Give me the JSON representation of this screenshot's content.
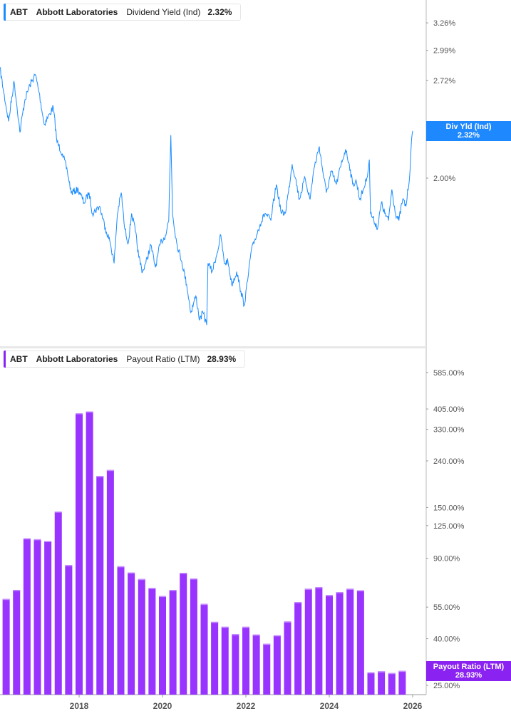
{
  "colors": {
    "yield_line": "#1a8cff",
    "payout_bars": "#9933ff",
    "yield_badge": "#1e88ff",
    "payout_badge": "#8a22f2"
  },
  "top_legend": {
    "ticker": "ABT",
    "company": "Abbott Laboratories",
    "metric": "Dividend Yield (Ind)",
    "value": "2.32%"
  },
  "bottom_legend": {
    "ticker": "ABT",
    "company": "Abbott Laboratories",
    "metric": "Payout Ratio (LTM)",
    "value": "28.93%"
  },
  "top_badge": {
    "label": "Div Yld (Ind)",
    "value": "2.32%"
  },
  "bottom_badge": {
    "label": "Payout Ratio (LTM)",
    "value": "28.93%"
  },
  "chart_data": [
    {
      "type": "line",
      "series_label": "Dividend Yield (Ind)",
      "y_scale": "log",
      "y_ticks": [
        3.26,
        2.99,
        2.72,
        2.0
      ],
      "y_tick_labels": [
        "3.26%",
        "2.99%",
        "2.72%",
        "2.00%"
      ],
      "x_unit": "year",
      "points": [
        [
          2016.1,
          2.83
        ],
        [
          2016.19,
          2.62
        ],
        [
          2016.31,
          2.39
        ],
        [
          2016.44,
          2.71
        ],
        [
          2016.58,
          2.31
        ],
        [
          2016.7,
          2.56
        ],
        [
          2016.82,
          2.68
        ],
        [
          2016.95,
          2.77
        ],
        [
          2017.04,
          2.62
        ],
        [
          2017.16,
          2.37
        ],
        [
          2017.3,
          2.45
        ],
        [
          2017.38,
          2.5
        ],
        [
          2017.47,
          2.24
        ],
        [
          2017.6,
          2.16
        ],
        [
          2017.72,
          2.04
        ],
        [
          2017.81,
          1.91
        ],
        [
          2017.98,
          1.93
        ],
        [
          2018.12,
          1.85
        ],
        [
          2018.24,
          1.91
        ],
        [
          2018.32,
          1.79
        ],
        [
          2018.49,
          1.83
        ],
        [
          2018.63,
          1.71
        ],
        [
          2018.75,
          1.63
        ],
        [
          2018.84,
          1.53
        ],
        [
          2018.92,
          1.79
        ],
        [
          2019.01,
          1.91
        ],
        [
          2019.09,
          1.71
        ],
        [
          2019.18,
          1.63
        ],
        [
          2019.26,
          1.79
        ],
        [
          2019.35,
          1.69
        ],
        [
          2019.43,
          1.56
        ],
        [
          2019.52,
          1.49
        ],
        [
          2019.6,
          1.53
        ],
        [
          2019.72,
          1.62
        ],
        [
          2019.83,
          1.51
        ],
        [
          2019.95,
          1.63
        ],
        [
          2020.07,
          1.67
        ],
        [
          2020.15,
          1.75
        ],
        [
          2020.2,
          2.29
        ],
        [
          2020.24,
          1.79
        ],
        [
          2020.34,
          1.63
        ],
        [
          2020.46,
          1.54
        ],
        [
          2020.58,
          1.43
        ],
        [
          2020.68,
          1.31
        ],
        [
          2020.8,
          1.38
        ],
        [
          2020.89,
          1.28
        ],
        [
          2020.97,
          1.31
        ],
        [
          2021.06,
          1.26
        ],
        [
          2021.09,
          1.53
        ],
        [
          2021.19,
          1.49
        ],
        [
          2021.31,
          1.58
        ],
        [
          2021.4,
          1.67
        ],
        [
          2021.48,
          1.53
        ],
        [
          2021.57,
          1.54
        ],
        [
          2021.66,
          1.43
        ],
        [
          2021.78,
          1.49
        ],
        [
          2021.88,
          1.4
        ],
        [
          2021.96,
          1.34
        ],
        [
          2022.05,
          1.46
        ],
        [
          2022.12,
          1.58
        ],
        [
          2022.22,
          1.65
        ],
        [
          2022.34,
          1.73
        ],
        [
          2022.46,
          1.79
        ],
        [
          2022.6,
          1.75
        ],
        [
          2022.73,
          1.96
        ],
        [
          2022.85,
          1.79
        ],
        [
          2022.94,
          1.79
        ],
        [
          2023.02,
          1.91
        ],
        [
          2023.11,
          2.09
        ],
        [
          2023.19,
          2.0
        ],
        [
          2023.28,
          1.87
        ],
        [
          2023.42,
          2.0
        ],
        [
          2023.54,
          1.87
        ],
        [
          2023.62,
          2.04
        ],
        [
          2023.76,
          2.21
        ],
        [
          2023.83,
          2.07
        ],
        [
          2023.93,
          1.91
        ],
        [
          2024.05,
          2.04
        ],
        [
          2024.17,
          1.96
        ],
        [
          2024.27,
          2.07
        ],
        [
          2024.39,
          2.19
        ],
        [
          2024.48,
          2.09
        ],
        [
          2024.56,
          1.96
        ],
        [
          2024.65,
          1.98
        ],
        [
          2024.73,
          1.87
        ],
        [
          2024.82,
          1.93
        ],
        [
          2024.9,
          2.0
        ],
        [
          2024.96,
          2.12
        ],
        [
          2024.99,
          1.79
        ],
        [
          2025.07,
          1.75
        ],
        [
          2025.16,
          1.71
        ],
        [
          2025.25,
          1.85
        ],
        [
          2025.33,
          1.79
        ],
        [
          2025.42,
          1.75
        ],
        [
          2025.5,
          1.93
        ],
        [
          2025.59,
          1.79
        ],
        [
          2025.67,
          1.75
        ],
        [
          2025.76,
          1.87
        ],
        [
          2025.84,
          1.83
        ],
        [
          2025.93,
          2.02
        ],
        [
          2025.96,
          2.19
        ],
        [
          2026.0,
          2.32
        ]
      ],
      "last_value": 2.32
    },
    {
      "type": "bar",
      "series_label": "Payout Ratio (LTM)",
      "y_scale": "log",
      "y_ticks": [
        585,
        405,
        330,
        240,
        150,
        125,
        90,
        55,
        40,
        25
      ],
      "y_tick_labels": [
        "585.00%",
        "405.00%",
        "330.00%",
        "240.00%",
        "150.00%",
        "125.00%",
        "90.00%",
        "55.00%",
        "40.00%",
        "25.00%"
      ],
      "x_tick_labels": [
        "2018",
        "2020",
        "2022",
        "2024",
        "2026"
      ],
      "categories": [
        "2016-Q2",
        "2016-Q3",
        "2016-Q4",
        "2017-Q1",
        "2017-Q2",
        "2017-Q3",
        "2017-Q4",
        "2018-Q1",
        "2018-Q2",
        "2018-Q3",
        "2018-Q4",
        "2019-Q1",
        "2019-Q2",
        "2019-Q3",
        "2019-Q4",
        "2020-Q1",
        "2020-Q2",
        "2020-Q3",
        "2020-Q4",
        "2021-Q1",
        "2021-Q2",
        "2021-Q3",
        "2021-Q4",
        "2022-Q1",
        "2022-Q2",
        "2022-Q3",
        "2022-Q4",
        "2023-Q1",
        "2023-Q2",
        "2023-Q3",
        "2023-Q4",
        "2024-Q1",
        "2024-Q2",
        "2024-Q3",
        "2024-Q4",
        "2025-Q1",
        "2025-Q2",
        "2025-Q3",
        "2025-Q4"
      ],
      "values": [
        59.7,
        65.4,
        110,
        109,
        107,
        144,
        84,
        388,
        395,
        206,
        219,
        83,
        78,
        73,
        66.7,
        61.5,
        65.4,
        77.7,
        73.4,
        56.8,
        47.4,
        45.1,
        41.9,
        45.1,
        41.7,
        38.0,
        41.4,
        47.6,
        57.9,
        66.2,
        67.3,
        62.1,
        64.0,
        66.2,
        65.2,
        28.5,
        28.8,
        28.3,
        28.93
      ]
    }
  ]
}
